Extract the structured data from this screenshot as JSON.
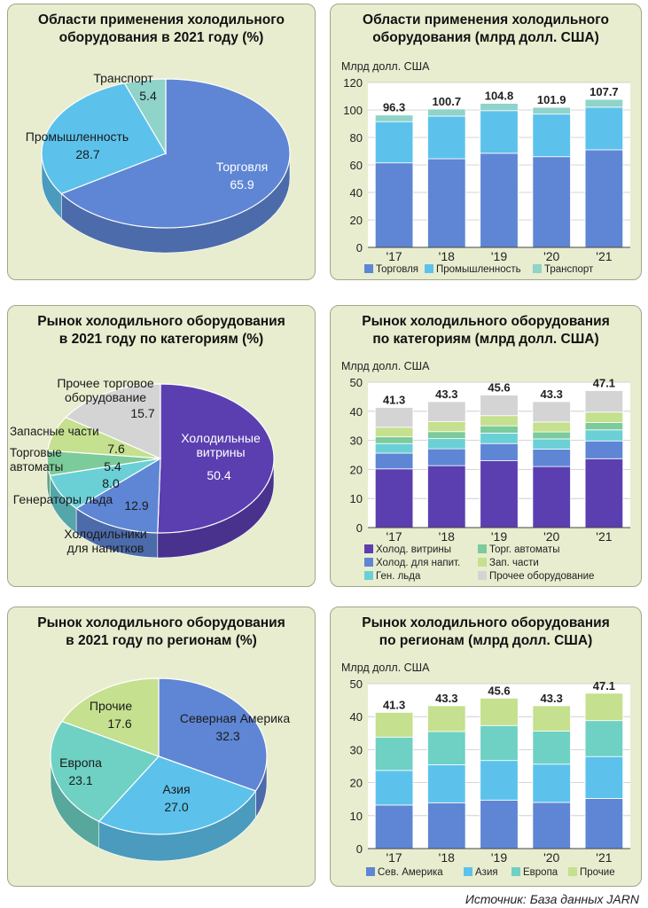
{
  "source": "Источник: База данных JARN",
  "chart_data": [
    {
      "type": "pie",
      "title": "Области применения холодильного\nоборудования в 2021 году (%)",
      "slices": [
        {
          "label": "Торговля",
          "value": 65.9,
          "color": "#5f86d4"
        },
        {
          "label": "Промышленность",
          "value": 28.7,
          "color": "#5cc2ec"
        },
        {
          "label": "Транспорт",
          "value": 5.4,
          "color": "#8fd3c9"
        }
      ]
    },
    {
      "type": "bar",
      "stacked": true,
      "title": "Области применения холодильного\nоборудования (млрд долл. США)",
      "ylabel": "Млрд долл. США",
      "ylim": [
        0,
        120
      ],
      "yticks": [
        0,
        20,
        40,
        60,
        80,
        100,
        120
      ],
      "categories": [
        "'17",
        "'18",
        "'19",
        "'20",
        "'21"
      ],
      "totals": [
        "96.3",
        "100.7",
        "104.8",
        "101.9",
        "107.7"
      ],
      "series": [
        {
          "name": "Торговля",
          "color": "#5f86d4",
          "values": [
            61.5,
            64.5,
            68.5,
            66.0,
            71.0
          ]
        },
        {
          "name": "Промышленность",
          "color": "#5cc2ec",
          "values": [
            30.0,
            31.0,
            31.0,
            31.0,
            31.0
          ]
        },
        {
          "name": "Транспорт",
          "color": "#8fd3c9",
          "values": [
            4.8,
            5.2,
            5.3,
            4.9,
            5.7
          ]
        }
      ]
    },
    {
      "type": "pie",
      "title": "Рынок холодильного оборудования\nв 2021 году по категориям (%)",
      "slices": [
        {
          "label": "Холодильные\nвитрины",
          "value": 50.4,
          "color": "#5b3fb0"
        },
        {
          "label": "Холодильники\nдля напитков",
          "value": 12.9,
          "color": "#5f86d4"
        },
        {
          "label": "Генераторы льда",
          "value": 8.0,
          "color": "#6ad0d6"
        },
        {
          "label": "Торговые\nавтоматы",
          "value": 5.4,
          "color": "#7ccb9a"
        },
        {
          "label": "Запасные части",
          "value": 7.6,
          "color": "#c5e08e"
        },
        {
          "label": "Прочее торговое\nоборудование",
          "value": 15.7,
          "color": "#d4d4d4"
        }
      ]
    },
    {
      "type": "bar",
      "stacked": true,
      "title": "Рынок холодильного оборудования\nпо категориям (млрд долл. США)",
      "ylabel": "Млрд долл. США",
      "ylim": [
        0,
        50
      ],
      "yticks": [
        0,
        10,
        20,
        30,
        40,
        50
      ],
      "categories": [
        "'17",
        "'18",
        "'19",
        "'20",
        "'21"
      ],
      "totals": [
        "41.3",
        "43.3",
        "45.6",
        "43.3",
        "47.1"
      ],
      "series": [
        {
          "name": "Холод. витрины",
          "color": "#5b3fb0",
          "values": [
            20.2,
            21.3,
            23.0,
            21.0,
            23.7
          ]
        },
        {
          "name": "Холод. для напит.",
          "color": "#5f86d4",
          "values": [
            5.4,
            5.8,
            5.9,
            6.0,
            6.1
          ]
        },
        {
          "name": "Ген. льда",
          "color": "#6ad0d6",
          "values": [
            3.3,
            3.5,
            3.6,
            3.5,
            3.8
          ]
        },
        {
          "name": "Торг. автоматы",
          "color": "#7ccb9a",
          "values": [
            2.3,
            2.4,
            2.5,
            2.4,
            2.5
          ]
        },
        {
          "name": "Зап. части",
          "color": "#c5e08e",
          "values": [
            3.3,
            3.4,
            3.5,
            3.4,
            3.6
          ]
        },
        {
          "name": "Прочее оборудование",
          "color": "#d4d4d4",
          "values": [
            6.8,
            6.9,
            7.1,
            7.0,
            7.4
          ]
        }
      ]
    },
    {
      "type": "pie",
      "title": "Рынок холодильного оборудования\nв 2021 году по регионам (%)",
      "slices": [
        {
          "label": "Северная Америка",
          "value": 32.3,
          "color": "#5f86d4"
        },
        {
          "label": "Азия",
          "value": 27.0,
          "color": "#5cc2ec"
        },
        {
          "label": "Европа",
          "value": 23.1,
          "color": "#6ed1c4"
        },
        {
          "label": "Прочие",
          "value": 17.6,
          "color": "#c5e08e"
        }
      ]
    },
    {
      "type": "bar",
      "stacked": true,
      "title": "Рынок холодильного оборудования\nпо регионам (млрд долл. США)",
      "ylabel": "Млрд долл. США",
      "ylim": [
        0,
        50
      ],
      "yticks": [
        0,
        10,
        20,
        30,
        40,
        50
      ],
      "categories": [
        "'17",
        "'18",
        "'19",
        "'20",
        "'21"
      ],
      "totals": [
        "41.3",
        "43.3",
        "45.6",
        "43.3",
        "47.1"
      ],
      "series": [
        {
          "name": "Сев. Америка",
          "color": "#5f86d4",
          "values": [
            13.2,
            13.9,
            14.7,
            14.0,
            15.2
          ]
        },
        {
          "name": "Азия",
          "color": "#5cc2ec",
          "values": [
            10.5,
            11.5,
            12.0,
            11.6,
            12.7
          ]
        },
        {
          "name": "Европа",
          "color": "#6ed1c4",
          "values": [
            10.1,
            10.1,
            10.6,
            10.0,
            10.9
          ]
        },
        {
          "name": "Прочие",
          "color": "#c5e08e",
          "values": [
            7.5,
            7.8,
            8.3,
            7.7,
            8.3
          ]
        }
      ]
    }
  ]
}
